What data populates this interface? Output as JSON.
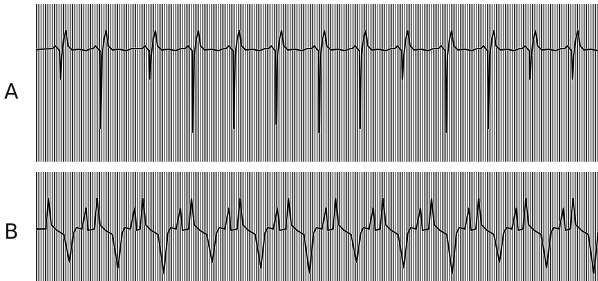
{
  "strips": [
    {
      "label": "A"
    },
    {
      "label": "B"
    }
  ],
  "colors": {
    "paper": "#ffffff",
    "grid": "#1a1a1a",
    "trace": "#000000"
  }
}
